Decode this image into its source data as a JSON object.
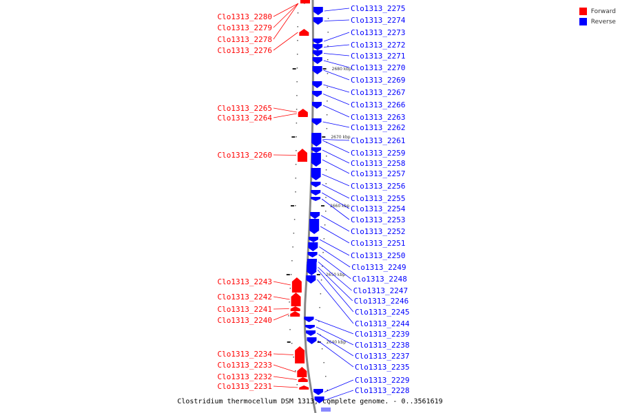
{
  "legend": {
    "forward_label": "Forward",
    "reverse_label": "Reverse",
    "forward_color": "#ff0000",
    "reverse_color": "#0000ff"
  },
  "caption": "Clostridium thermocellum DSM 1313, complete genome. - 0..3561619",
  "axis_ticks": [
    "2680 kbp",
    "2670 kbp",
    "2660 kbp",
    "2650 kbp",
    "2640 kbp"
  ],
  "forward_genes": [
    {
      "label": "Clo1313_2280"
    },
    {
      "label": "Clo1313_2279"
    },
    {
      "label": "Clo1313_2278"
    },
    {
      "label": "Clo1313_2276"
    },
    {
      "label": "Clo1313_2265"
    },
    {
      "label": "Clo1313_2264"
    },
    {
      "label": "Clo1313_2260"
    },
    {
      "label": "Clo1313_2243"
    },
    {
      "label": "Clo1313_2242"
    },
    {
      "label": "Clo1313_2241"
    },
    {
      "label": "Clo1313_2240"
    },
    {
      "label": "Clo1313_2234"
    },
    {
      "label": "Clo1313_2233"
    },
    {
      "label": "Clo1313_2232"
    },
    {
      "label": "Clo1313_2231"
    }
  ],
  "reverse_genes": [
    {
      "label": "Clo1313_2275"
    },
    {
      "label": "Clo1313_2274"
    },
    {
      "label": "Clo1313_2273"
    },
    {
      "label": "Clo1313_2272"
    },
    {
      "label": "Clo1313_2271"
    },
    {
      "label": "Clo1313_2270"
    },
    {
      "label": "Clo1313_2269"
    },
    {
      "label": "Clo1313_2267"
    },
    {
      "label": "Clo1313_2266"
    },
    {
      "label": "Clo1313_2263"
    },
    {
      "label": "Clo1313_2262"
    },
    {
      "label": "Clo1313_2261"
    },
    {
      "label": "Clo1313_2259"
    },
    {
      "label": "Clo1313_2258"
    },
    {
      "label": "Clo1313_2257"
    },
    {
      "label": "Clo1313_2256"
    },
    {
      "label": "Clo1313_2255"
    },
    {
      "label": "Clo1313_2254"
    },
    {
      "label": "Clo1313_2253"
    },
    {
      "label": "Clo1313_2252"
    },
    {
      "label": "Clo1313_2251"
    },
    {
      "label": "Clo1313_2250"
    },
    {
      "label": "Clo1313_2249"
    },
    {
      "label": "Clo1313_2248"
    },
    {
      "label": "Clo1313_2247"
    },
    {
      "label": "Clo1313_2246"
    },
    {
      "label": "Clo1313_2245"
    },
    {
      "label": "Clo1313_2244"
    },
    {
      "label": "Clo1313_2239"
    },
    {
      "label": "Clo1313_2238"
    },
    {
      "label": "Clo1313_2237"
    },
    {
      "label": "Clo1313_2235"
    },
    {
      "label": "Clo1313_2229"
    },
    {
      "label": "Clo1313_2228"
    }
  ]
}
